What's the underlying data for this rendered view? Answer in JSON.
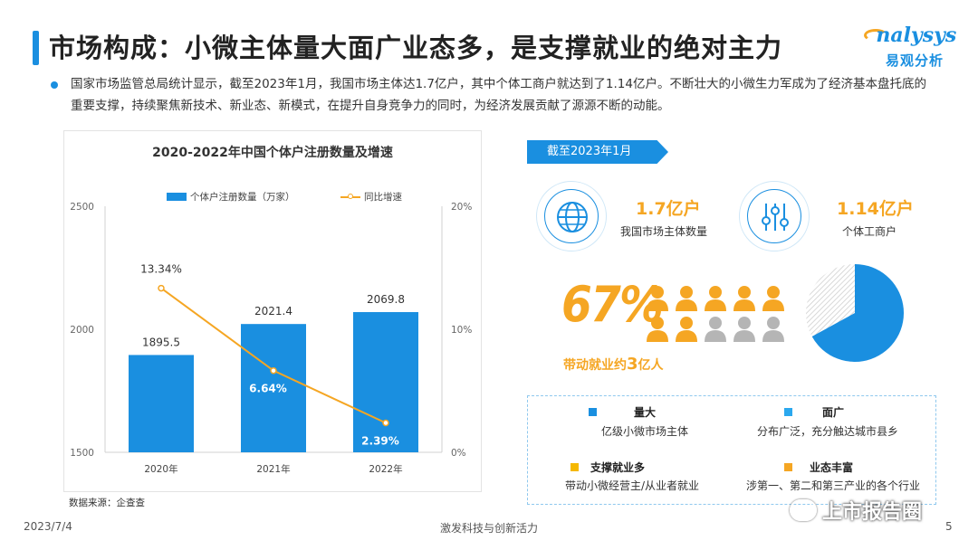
{
  "header": {
    "title": "市场构成：小微主体量大面广业态多，是支撑就业的绝对主力"
  },
  "logo": {
    "text_en": "nalysys",
    "text_cn": "易观分析"
  },
  "intro": {
    "text": "国家市场监管总局统计显示，截至2023年1月，我国市场主体达1.7亿户，其中个体工商户就达到了1.14亿户。不断壮大的小微生力军成为了经济基本盘托底的重要支撑，持续聚焦新技术、新业态、新模式，在提升自身竞争力的同时，为经济发展贡献了源源不断的动能。"
  },
  "chart_data": {
    "type": "bar",
    "title": "2020-2022年中国个体户注册数量及增速",
    "categories": [
      "2020年",
      "2021年",
      "2022年"
    ],
    "series": [
      {
        "name": "个体户注册数量（万家）",
        "values": [
          1895.5,
          2021.4,
          2069.8
        ],
        "axis": "left",
        "kind": "bar",
        "labels": [
          "1895.5",
          "2021.4",
          "2069.8"
        ],
        "color": "#1a8fe0"
      },
      {
        "name": "同比增速",
        "values": [
          13.34,
          6.64,
          2.39
        ],
        "axis": "right",
        "kind": "line",
        "labels": [
          "13.34%",
          "6.64%",
          "2.39%"
        ],
        "color": "#f5a623"
      }
    ],
    "ylim_left": [
      1500,
      2500
    ],
    "yticks_left": [
      "1500",
      "2000",
      "2500"
    ],
    "ylim_right": [
      0,
      20
    ],
    "yticks_right": [
      "0%",
      "10%",
      "20%"
    ],
    "grid": false,
    "legend_position": "top"
  },
  "source": "数据来源：企查查",
  "highlights": {
    "ribbon": "截至2023年1月",
    "stat1": {
      "value": "1.7亿户",
      "label": "我国市场主体数量",
      "icon": "globe-icon"
    },
    "stat2": {
      "value": "1.14亿户",
      "label": "个体工商户",
      "icon": "sliders-icon"
    },
    "share": {
      "value": "67%",
      "people_filled": 7,
      "people_total": 10,
      "pie_fraction": 0.67
    },
    "employment": {
      "prefix": "带动就业约",
      "number": "3",
      "suffix": "亿人"
    }
  },
  "features": [
    {
      "title": "量大",
      "desc": "亿级小微市场主体",
      "color": "#1a8fe0"
    },
    {
      "title": "面广",
      "desc": "分布广泛，充分触达城市县乡",
      "color": "#2ba8ee"
    },
    {
      "title": "支撑就业多",
      "desc": "带动小微经营主/从业者就业",
      "color": "#f5b800"
    },
    {
      "title": "业态丰富",
      "desc": "涉第一、第二和第三产业的各个行业",
      "color": "#f5a623"
    }
  ],
  "footer": {
    "date": "2023/7/4",
    "center": "激发科技与创新活力",
    "page": "5",
    "watermark": "上市报告圈"
  },
  "colors": {
    "accent": "#1a8fe0",
    "orange": "#f5a623",
    "person_gray": "#b5b5b5"
  }
}
